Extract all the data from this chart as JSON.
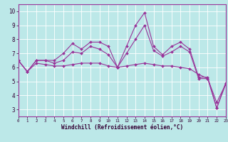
{
  "xlabel": "Windchill (Refroidissement éolien,°C)",
  "background_color": "#bce8e8",
  "line_color": "#993399",
  "grid_color": "#ffffff",
  "xlim": [
    0,
    23
  ],
  "ylim": [
    2.5,
    10.5
  ],
  "yticks": [
    3,
    4,
    5,
    6,
    7,
    8,
    9,
    10
  ],
  "xticks": [
    0,
    1,
    2,
    3,
    4,
    5,
    6,
    7,
    8,
    9,
    10,
    11,
    12,
    13,
    14,
    15,
    16,
    17,
    18,
    19,
    20,
    21,
    22,
    23
  ],
  "x": [
    0,
    1,
    2,
    3,
    4,
    5,
    6,
    7,
    8,
    9,
    10,
    11,
    12,
    13,
    14,
    15,
    16,
    17,
    18,
    19,
    20,
    21,
    22,
    23
  ],
  "y_top": [
    6.5,
    5.7,
    6.5,
    6.5,
    6.5,
    7.0,
    7.7,
    7.3,
    7.8,
    7.8,
    7.5,
    6.0,
    7.5,
    9.0,
    9.9,
    7.5,
    6.9,
    7.5,
    7.8,
    7.3,
    5.3,
    5.3,
    3.1,
    4.9
  ],
  "y_mid": [
    6.5,
    5.7,
    6.5,
    6.5,
    6.3,
    6.5,
    7.1,
    7.0,
    7.5,
    7.3,
    6.9,
    6.0,
    7.0,
    8.0,
    9.0,
    7.2,
    6.8,
    7.1,
    7.5,
    7.1,
    5.2,
    5.2,
    3.5,
    4.8
  ],
  "y_bot": [
    6.5,
    5.7,
    6.3,
    6.2,
    6.1,
    6.1,
    6.2,
    6.3,
    6.3,
    6.3,
    6.1,
    6.0,
    6.1,
    6.2,
    6.3,
    6.2,
    6.1,
    6.1,
    6.0,
    5.9,
    5.5,
    5.2,
    3.1,
    4.8
  ]
}
